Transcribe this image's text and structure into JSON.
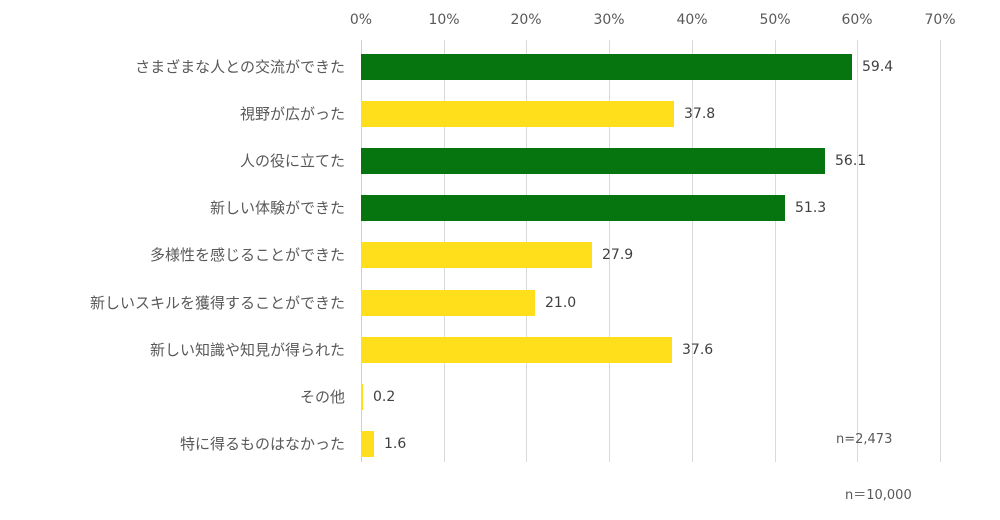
{
  "chart_data": {
    "type": "bar",
    "orientation": "horizontal",
    "title": "",
    "xlabel": "",
    "ylabel": "",
    "xlim": [
      0,
      70
    ],
    "x_ticks": [
      "0%",
      "10%",
      "20%",
      "30%",
      "40%",
      "50%",
      "60%",
      "70%"
    ],
    "grid": true,
    "legend": null,
    "categories": [
      "さまざまな人との交流ができた",
      "視野が広がった",
      "人の役に立てた",
      "新しい体験ができた",
      "多様性を感じることができた",
      "新しいスキルを獲得することができた",
      "新しい知識や知見が得られた",
      "その他",
      "特に得るものはなかった"
    ],
    "values": [
      59.4,
      37.8,
      56.1,
      51.3,
      27.9,
      21.0,
      37.6,
      0.2,
      1.6
    ],
    "value_labels": [
      "59.4",
      "37.8",
      "56.1",
      "51.3",
      "27.9",
      "21.0",
      "37.6",
      "0.2",
      "1.6"
    ],
    "bar_colors": [
      "#067510",
      "#ffdf1b",
      "#067510",
      "#067510",
      "#ffdf1b",
      "#ffdf1b",
      "#ffdf1b",
      "#ffdf1b",
      "#ffdf1b"
    ],
    "annotations": [
      "n=2,473",
      "n＝10,000"
    ]
  },
  "colors": {
    "highlight": "#067510",
    "normal": "#ffdf1b",
    "grid": "#d9d9d9"
  },
  "notes": {
    "inner": "n=2,473",
    "outer": "n＝10,000"
  }
}
